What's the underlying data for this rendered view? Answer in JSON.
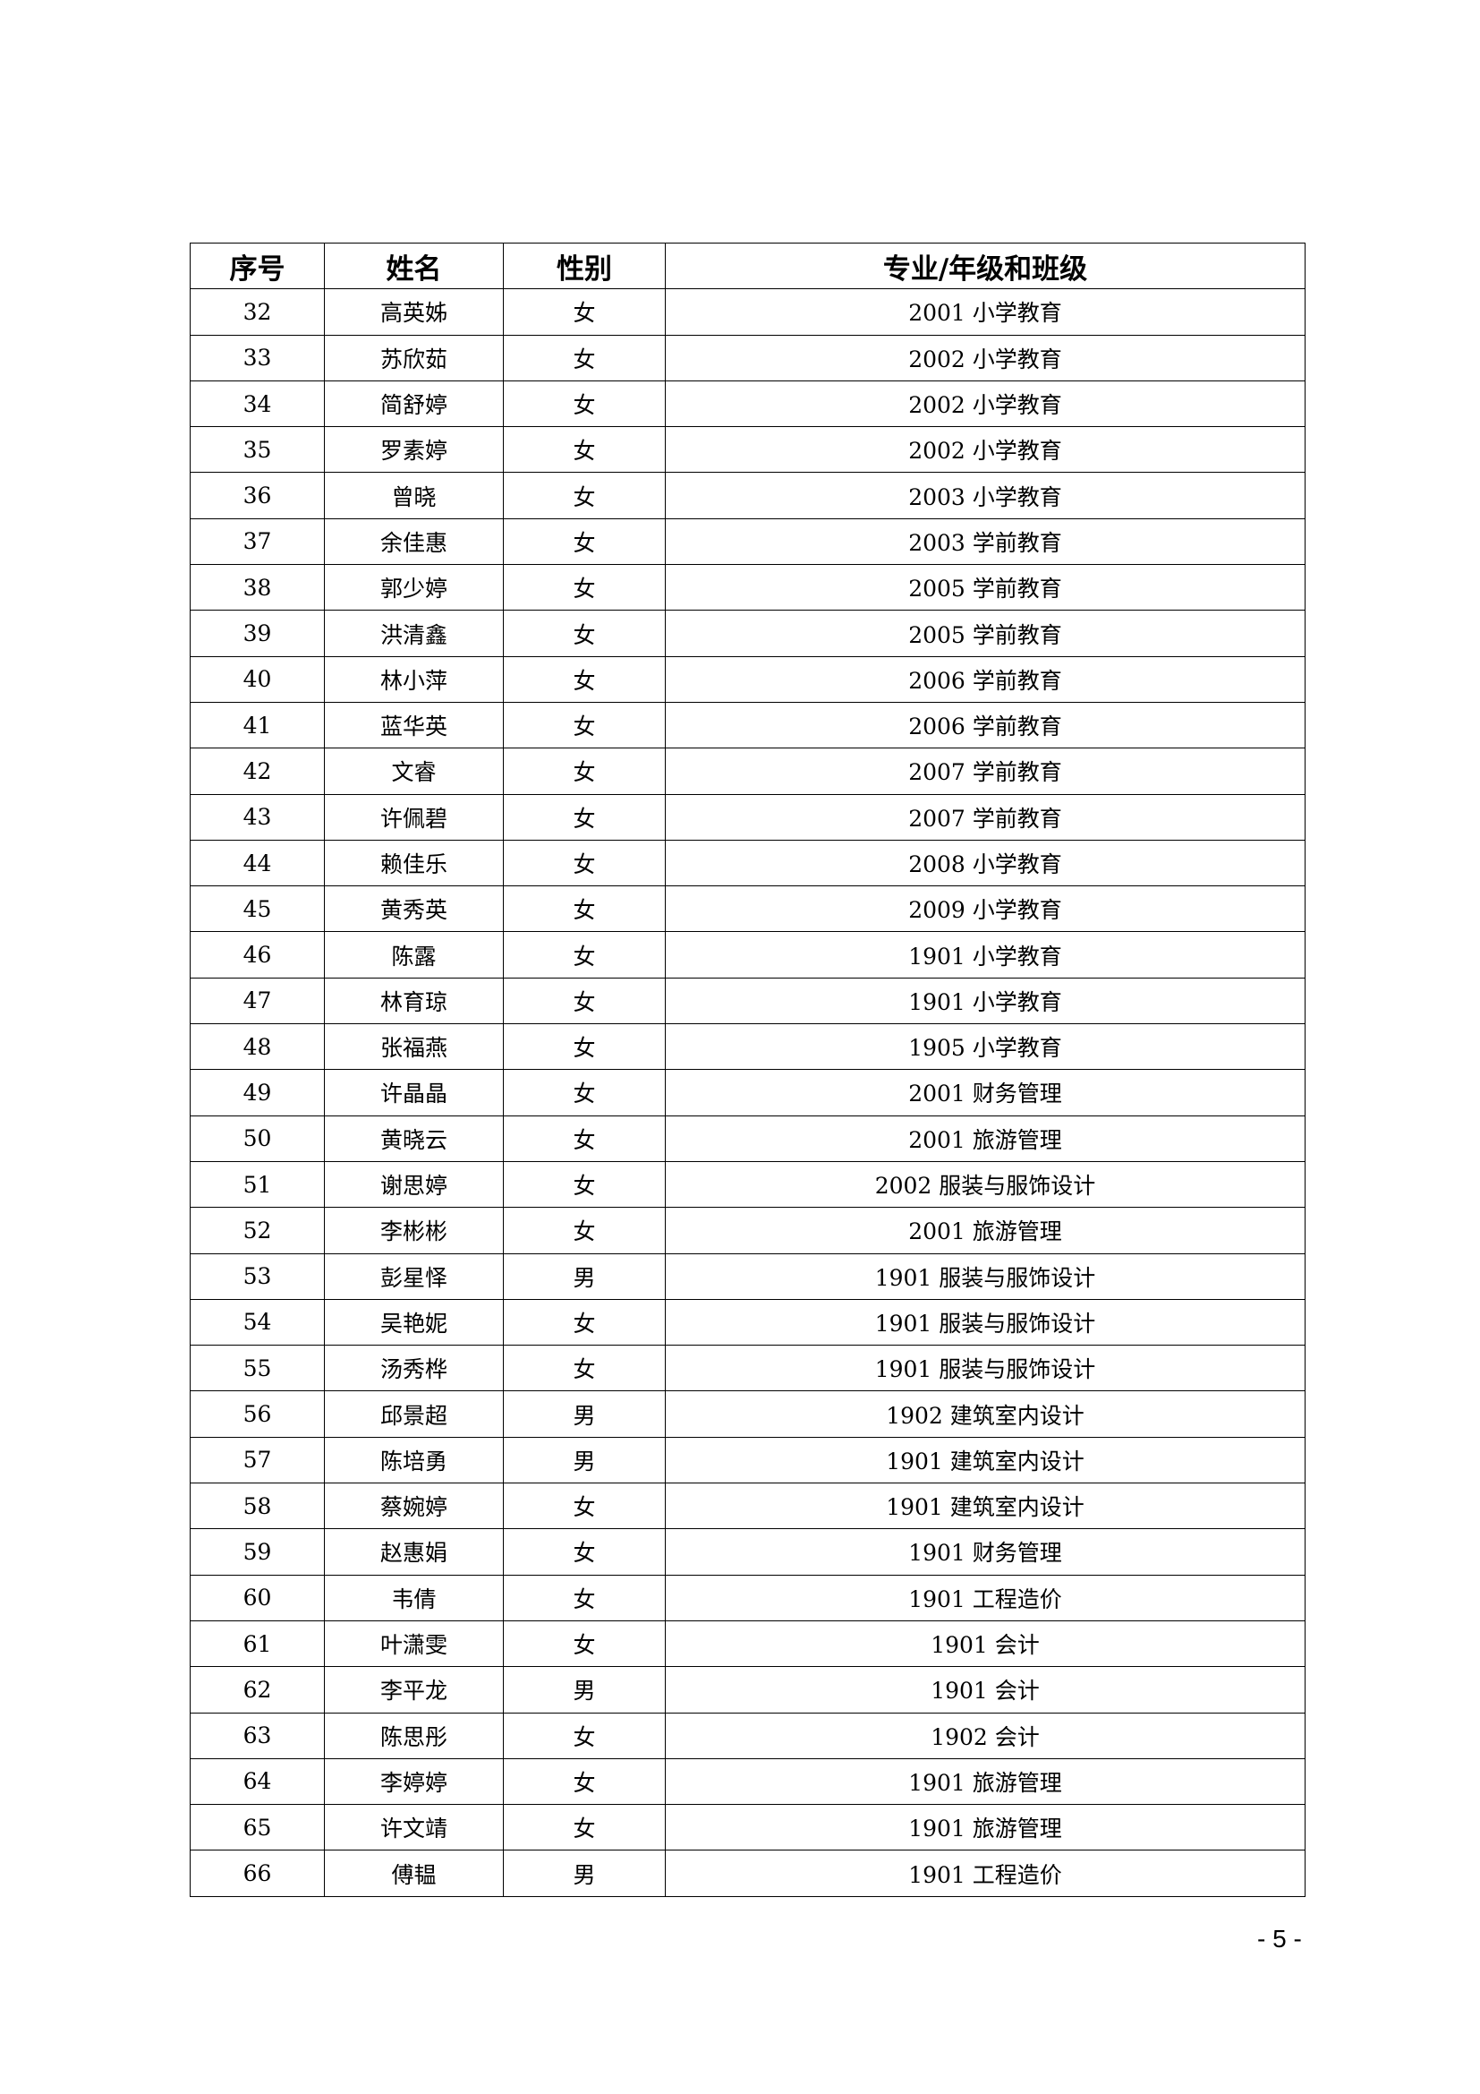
{
  "table": {
    "headers": [
      "序号",
      "姓名",
      "性别",
      "专业/年级和班级"
    ],
    "rows": [
      [
        "32",
        "高英姊",
        "女",
        "2001 小学教育"
      ],
      [
        "33",
        "苏欣茹",
        "女",
        "2002 小学教育"
      ],
      [
        "34",
        "简舒婷",
        "女",
        "2002 小学教育"
      ],
      [
        "35",
        "罗素婷",
        "女",
        "2002 小学教育"
      ],
      [
        "36",
        "曾晓",
        "女",
        "2003 小学教育"
      ],
      [
        "37",
        "余佳惠",
        "女",
        "2003 学前教育"
      ],
      [
        "38",
        "郭少婷",
        "女",
        "2005 学前教育"
      ],
      [
        "39",
        "洪清鑫",
        "女",
        "2005 学前教育"
      ],
      [
        "40",
        "林小萍",
        "女",
        "2006 学前教育"
      ],
      [
        "41",
        "蓝华英",
        "女",
        "2006 学前教育"
      ],
      [
        "42",
        "文睿",
        "女",
        "2007 学前教育"
      ],
      [
        "43",
        "许佩碧",
        "女",
        "2007 学前教育"
      ],
      [
        "44",
        "赖佳乐",
        "女",
        "2008 小学教育"
      ],
      [
        "45",
        "黄秀英",
        "女",
        "2009 小学教育"
      ],
      [
        "46",
        "陈露",
        "女",
        "1901 小学教育"
      ],
      [
        "47",
        "林育琼",
        "女",
        "1901 小学教育"
      ],
      [
        "48",
        "张福燕",
        "女",
        "1905 小学教育"
      ],
      [
        "49",
        "许晶晶",
        "女",
        "2001 财务管理"
      ],
      [
        "50",
        "黄晓云",
        "女",
        "2001 旅游管理"
      ],
      [
        "51",
        "谢思婷",
        "女",
        "2002 服装与服饰设计"
      ],
      [
        "52",
        "李彬彬",
        "女",
        "2001 旅游管理"
      ],
      [
        "53",
        "彭星怿",
        "男",
        "1901 服装与服饰设计"
      ],
      [
        "54",
        "吴艳妮",
        "女",
        "1901 服装与服饰设计"
      ],
      [
        "55",
        "汤秀桦",
        "女",
        "1901 服装与服饰设计"
      ],
      [
        "56",
        "邱景超",
        "男",
        "1902 建筑室内设计"
      ],
      [
        "57",
        "陈培勇",
        "男",
        "1901 建筑室内设计"
      ],
      [
        "58",
        "蔡婉婷",
        "女",
        "1901 建筑室内设计"
      ],
      [
        "59",
        "赵惠娟",
        "女",
        "1901 财务管理"
      ],
      [
        "60",
        "韦倩",
        "女",
        "1901 工程造价"
      ],
      [
        "61",
        "叶潇雯",
        "女",
        "1901 会计"
      ],
      [
        "62",
        "李平龙",
        "男",
        "1901 会计"
      ],
      [
        "63",
        "陈思彤",
        "女",
        "1902 会计"
      ],
      [
        "64",
        "李婷婷",
        "女",
        "1901 旅游管理"
      ],
      [
        "65",
        "许文靖",
        "女",
        "1901 旅游管理"
      ],
      [
        "66",
        "傅韫",
        "男",
        "1901 工程造价"
      ]
    ]
  },
  "page_number": "- 5 -"
}
